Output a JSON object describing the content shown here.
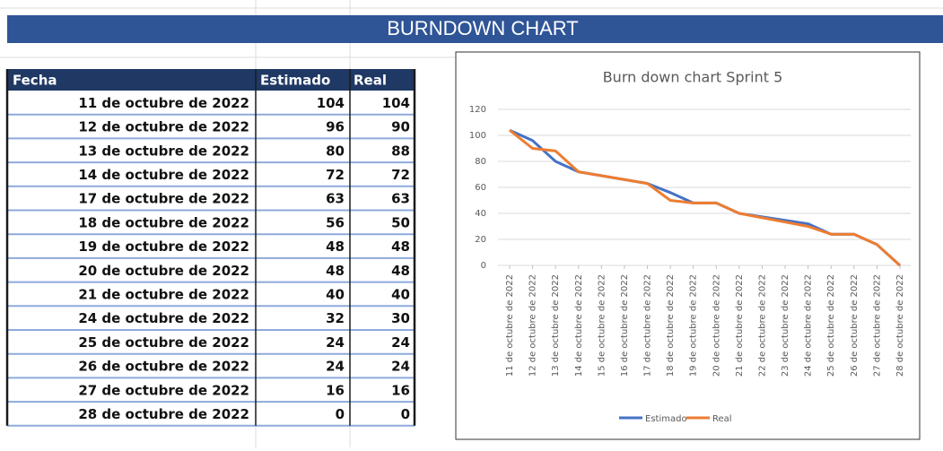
{
  "header": {
    "title": "BURNDOWN CHART"
  },
  "table": {
    "headers": [
      "Fecha",
      "Estimado",
      "Real"
    ],
    "rows": [
      [
        "11 de octubre de 2022",
        104,
        104
      ],
      [
        "12 de octubre de 2022",
        96,
        90
      ],
      [
        "13 de octubre de 2022",
        80,
        88
      ],
      [
        "14 de octubre de 2022",
        72,
        72
      ],
      [
        "17 de octubre de 2022",
        63,
        63
      ],
      [
        "18 de octubre de 2022",
        56,
        50
      ],
      [
        "19 de octubre de 2022",
        48,
        48
      ],
      [
        "20 de octubre de 2022",
        48,
        48
      ],
      [
        "21 de octubre de 2022",
        40,
        40
      ],
      [
        "24 de octubre de 2022",
        32,
        30
      ],
      [
        "25 de octubre de 2022",
        24,
        24
      ],
      [
        "26 de octubre de 2022",
        24,
        24
      ],
      [
        "27 de octubre de 2022",
        16,
        16
      ],
      [
        "28 de octubre de 2022",
        0,
        0
      ]
    ]
  },
  "chart_data": {
    "type": "line",
    "title": "Burn down chart Sprint 5",
    "x": [
      "2022-10-11",
      "2022-10-12",
      "2022-10-13",
      "2022-10-14",
      "2022-10-17",
      "2022-10-18",
      "2022-10-19",
      "2022-10-20",
      "2022-10-21",
      "2022-10-24",
      "2022-10-25",
      "2022-10-26",
      "2022-10-27",
      "2022-10-28"
    ],
    "xlim": [
      "2022-10-11",
      "2022-10-28"
    ],
    "xticks": [
      {
        "value": "2022-10-11",
        "label": "11 de octubre de 2022"
      },
      {
        "value": "2022-10-12",
        "label": "12 de octubre de 2022"
      },
      {
        "value": "2022-10-13",
        "label": "13 de octubre de 2022"
      },
      {
        "value": "2022-10-14",
        "label": "14 de octubre de 2022"
      },
      {
        "value": "2022-10-15",
        "label": "15 de octubre de 2022"
      },
      {
        "value": "2022-10-16",
        "label": "16 de octubre de 2022"
      },
      {
        "value": "2022-10-17",
        "label": "17 de octubre de 2022"
      },
      {
        "value": "2022-10-18",
        "label": "18 de octubre de 2022"
      },
      {
        "value": "2022-10-19",
        "label": "19 de octubre de 2022"
      },
      {
        "value": "2022-10-20",
        "label": "20 de octubre de 2022"
      },
      {
        "value": "2022-10-21",
        "label": "21 de octubre de 2022"
      },
      {
        "value": "2022-10-22",
        "label": "22 de octubre de 2022"
      },
      {
        "value": "2022-10-23",
        "label": "23 de octubre de 2022"
      },
      {
        "value": "2022-10-24",
        "label": "24 de octubre de 2022"
      },
      {
        "value": "2022-10-25",
        "label": "25 de octubre de 2022"
      },
      {
        "value": "2022-10-26",
        "label": "26 de octubre de 2022"
      },
      {
        "value": "2022-10-27",
        "label": "27 de octubre de 2022"
      },
      {
        "value": "2022-10-28",
        "label": "28 de octubre de 2022"
      }
    ],
    "ylim": [
      0,
      120
    ],
    "yticks": [
      0,
      20,
      40,
      60,
      80,
      100,
      120
    ],
    "grid": true,
    "legend": "bottom",
    "series": [
      {
        "name": "Estimado",
        "color": "#4472c4",
        "values": [
          104,
          96,
          80,
          72,
          63,
          56,
          48,
          48,
          40,
          32,
          24,
          24,
          16,
          0
        ]
      },
      {
        "name": "Real",
        "color": "#ed7d31",
        "values": [
          104,
          90,
          88,
          72,
          63,
          50,
          48,
          48,
          40,
          30,
          24,
          24,
          16,
          0
        ]
      }
    ]
  }
}
